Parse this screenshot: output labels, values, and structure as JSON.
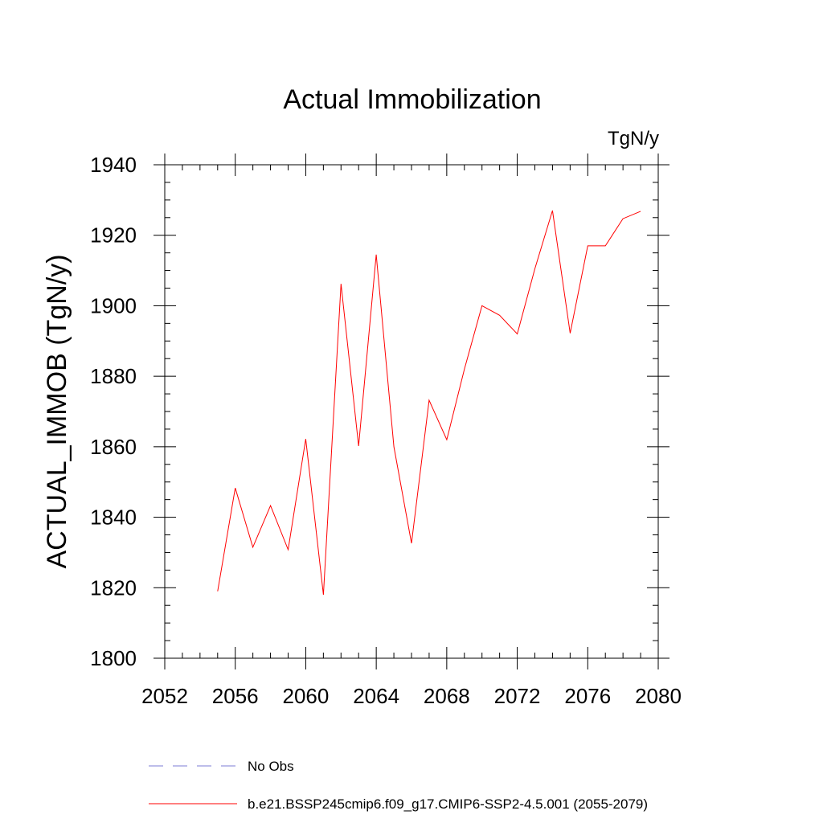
{
  "chart_data": {
    "type": "line",
    "title": "Actual Immobilization",
    "units": "TgN/y",
    "xlabel": "",
    "ylabel": "ACTUAL_IMMOB  (TgN/y)",
    "xlim": [
      2052,
      2080
    ],
    "ylim": [
      1800,
      1940
    ],
    "xticks": [
      2052,
      2056,
      2060,
      2064,
      2068,
      2072,
      2076,
      2080
    ],
    "yticks": [
      1800,
      1820,
      1840,
      1860,
      1880,
      1900,
      1920,
      1940
    ],
    "grid": false,
    "legend_position": "bottom",
    "series": [
      {
        "name": "b.e21.BSSP245cmip6.f09_g17.CMIP6-SSP2-4.5.001 (2055-2079)",
        "color": "#ff0000",
        "style": "solid",
        "x": [
          2055,
          2056,
          2057,
          2058,
          2059,
          2060,
          2061,
          2062,
          2063,
          2064,
          2065,
          2066,
          2067,
          2068,
          2069,
          2070,
          2071,
          2072,
          2073,
          2074,
          2075,
          2076,
          2077,
          2078,
          2079
        ],
        "values": [
          1819,
          1848.3,
          1831.5,
          1843.3,
          1830.8,
          1862.2,
          1818,
          1906.2,
          1860.2,
          1914.5,
          1860,
          1832.6,
          1873.2,
          1862,
          1882,
          1900,
          1897.3,
          1892,
          1910.5,
          1927,
          1892.2,
          1917,
          1917,
          1924.7,
          1926.8
        ]
      },
      {
        "name": "No Obs",
        "color": "#7b7bd6",
        "style": "dashed",
        "x": [],
        "values": []
      }
    ]
  }
}
